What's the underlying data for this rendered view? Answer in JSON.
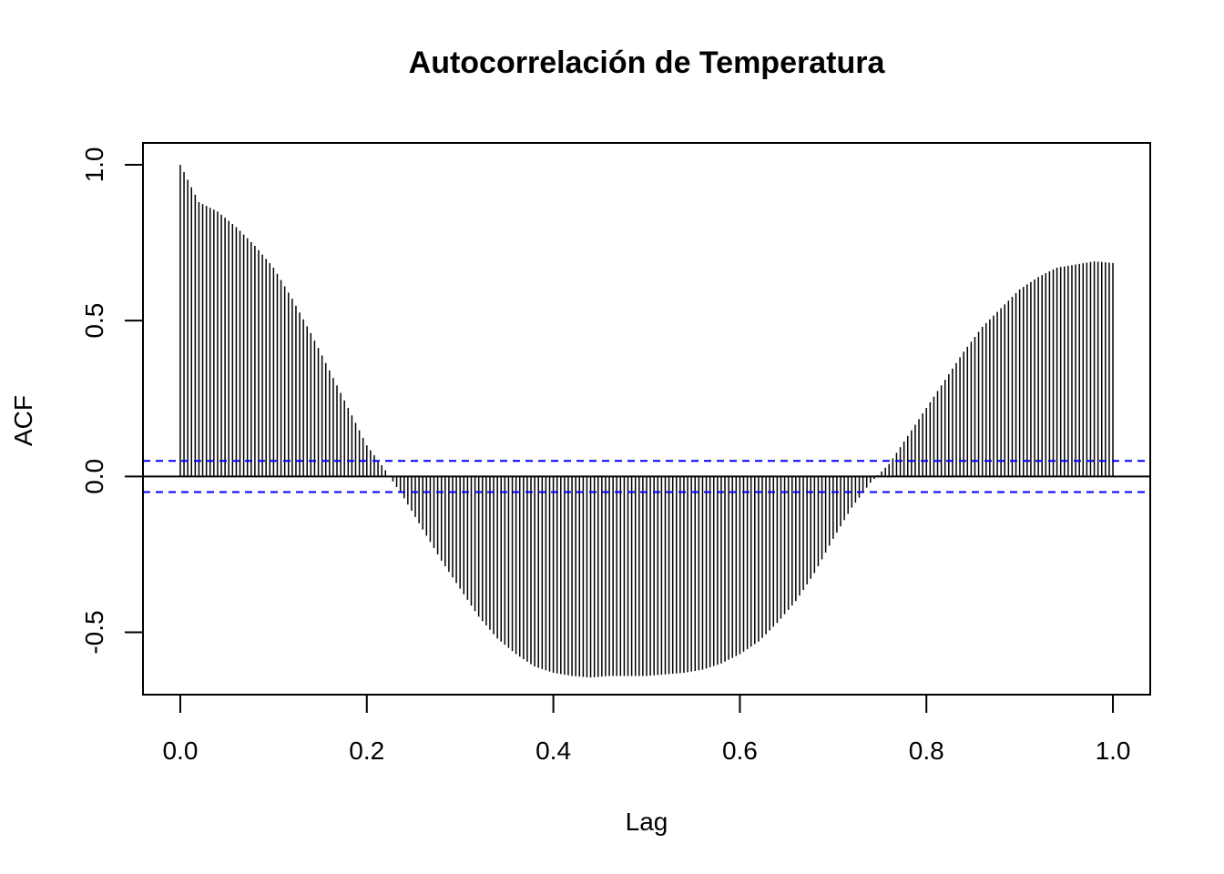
{
  "chart_data": {
    "type": "bar",
    "title": "Autocorrelación de Temperatura",
    "xlabel": "Lag",
    "ylabel": "ACF",
    "xlim": [
      -0.04,
      1.04
    ],
    "ylim": [
      -0.7,
      1.07
    ],
    "x_ticks": [
      "0.0",
      "0.2",
      "0.4",
      "0.6",
      "0.8",
      "1.0"
    ],
    "y_ticks": [
      "-0.5",
      "0.0",
      "0.5",
      "1.0"
    ],
    "confidence_bound": 0.05,
    "bar_color": "#000000",
    "bound_color": "#0000ff",
    "grid": false,
    "series": [
      {
        "x": [
          0.0,
          0.02,
          0.04,
          0.06,
          0.08,
          0.1,
          0.12,
          0.14,
          0.16,
          0.18,
          0.2,
          0.22,
          0.24,
          0.26,
          0.28,
          0.3,
          0.32,
          0.34,
          0.36,
          0.38,
          0.4,
          0.42,
          0.44,
          0.46,
          0.48,
          0.5,
          0.52,
          0.54,
          0.56,
          0.58,
          0.6,
          0.62,
          0.64,
          0.66,
          0.68,
          0.7,
          0.72,
          0.74,
          0.76,
          0.78,
          0.8,
          0.82,
          0.84,
          0.86,
          0.88,
          0.9,
          0.92,
          0.94,
          0.96,
          0.98,
          1.0
        ],
        "values": [
          1.0,
          0.88,
          0.85,
          0.8,
          0.74,
          0.67,
          0.57,
          0.46,
          0.34,
          0.22,
          0.1,
          0.02,
          -0.07,
          -0.17,
          -0.27,
          -0.36,
          -0.45,
          -0.52,
          -0.57,
          -0.61,
          -0.63,
          -0.64,
          -0.645,
          -0.64,
          -0.64,
          -0.64,
          -0.635,
          -0.63,
          -0.62,
          -0.6,
          -0.57,
          -0.53,
          -0.47,
          -0.4,
          -0.31,
          -0.2,
          -0.1,
          -0.02,
          0.04,
          0.13,
          0.22,
          0.31,
          0.4,
          0.48,
          0.54,
          0.6,
          0.64,
          0.67,
          0.68,
          0.69,
          0.685
        ]
      }
    ]
  }
}
